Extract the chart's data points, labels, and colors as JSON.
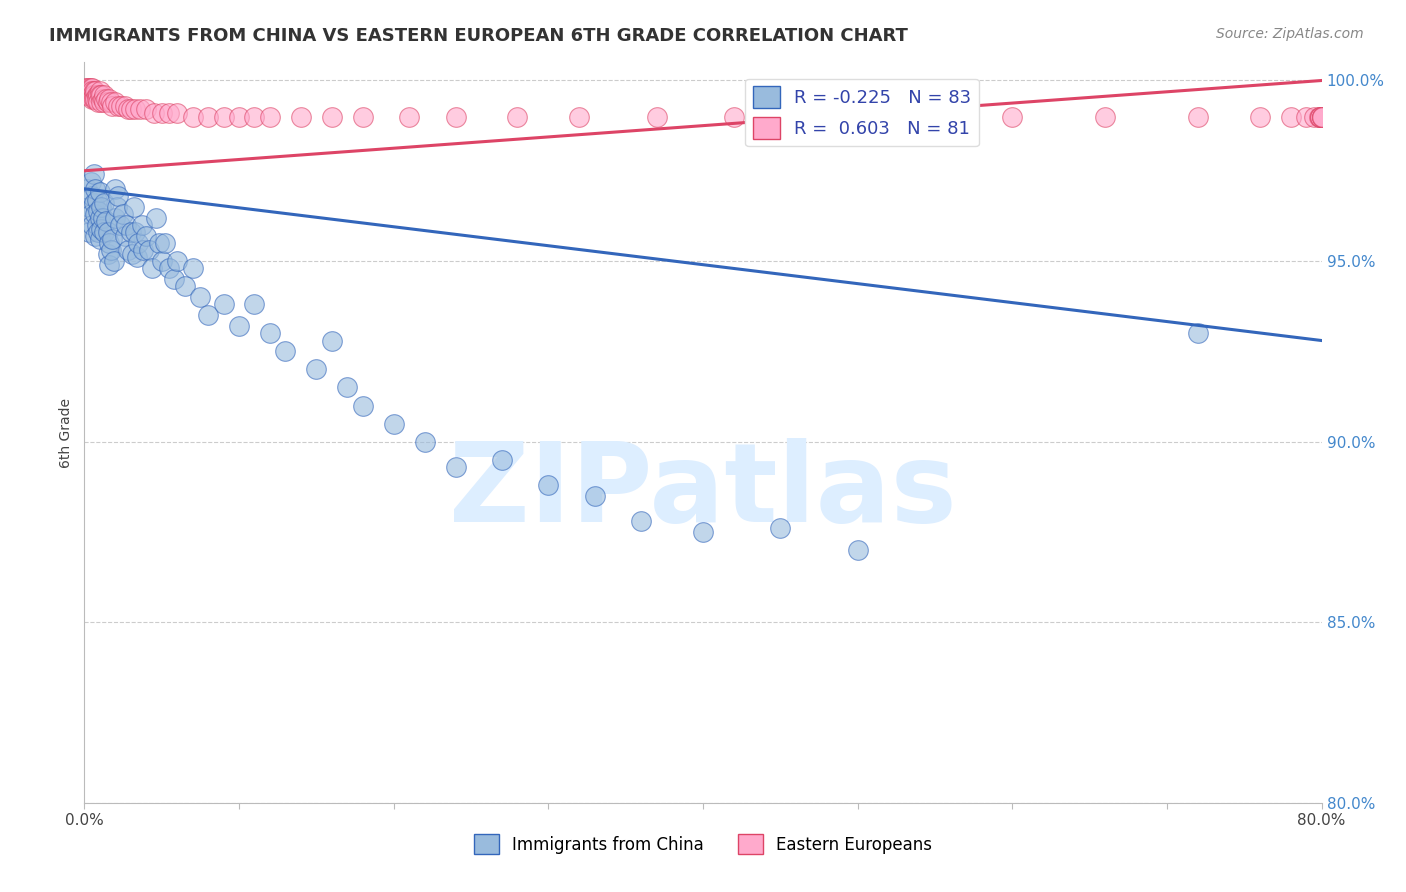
{
  "title": "IMMIGRANTS FROM CHINA VS EASTERN EUROPEAN 6TH GRADE CORRELATION CHART",
  "source": "Source: ZipAtlas.com",
  "ylabel": "6th Grade",
  "xmin": 0.0,
  "xmax": 0.8,
  "ymin": 0.8,
  "ymax": 1.005,
  "yticks": [
    0.8,
    0.85,
    0.9,
    0.95,
    1.0
  ],
  "ytick_labels": [
    "80.0%",
    "85.0%",
    "90.0%",
    "95.0%",
    "100.0%"
  ],
  "xticks": [
    0.0,
    0.1,
    0.2,
    0.3,
    0.4,
    0.5,
    0.6,
    0.7,
    0.8
  ],
  "xtick_labels": [
    "0.0%",
    "",
    "",
    "",
    "",
    "",
    "",
    "",
    "80.0%"
  ],
  "blue_color": "#99BBDD",
  "pink_color": "#FFAACC",
  "blue_line_color": "#3366BB",
  "pink_line_color": "#DD4466",
  "blue_scatter_x": [
    0.002,
    0.003,
    0.003,
    0.004,
    0.004,
    0.005,
    0.005,
    0.006,
    0.006,
    0.007,
    0.007,
    0.007,
    0.008,
    0.008,
    0.009,
    0.009,
    0.01,
    0.01,
    0.01,
    0.011,
    0.011,
    0.012,
    0.013,
    0.013,
    0.014,
    0.015,
    0.015,
    0.016,
    0.016,
    0.017,
    0.018,
    0.019,
    0.02,
    0.02,
    0.021,
    0.022,
    0.023,
    0.025,
    0.026,
    0.027,
    0.028,
    0.03,
    0.031,
    0.032,
    0.033,
    0.034,
    0.035,
    0.037,
    0.038,
    0.04,
    0.042,
    0.044,
    0.046,
    0.048,
    0.05,
    0.052,
    0.055,
    0.058,
    0.06,
    0.065,
    0.07,
    0.075,
    0.08,
    0.09,
    0.1,
    0.11,
    0.12,
    0.13,
    0.15,
    0.16,
    0.17,
    0.18,
    0.2,
    0.22,
    0.24,
    0.27,
    0.3,
    0.33,
    0.36,
    0.4,
    0.45,
    0.5,
    0.72
  ],
  "blue_scatter_y": [
    0.97,
    0.965,
    0.958,
    0.972,
    0.963,
    0.968,
    0.96,
    0.974,
    0.966,
    0.97,
    0.963,
    0.957,
    0.967,
    0.96,
    0.964,
    0.958,
    0.969,
    0.962,
    0.956,
    0.965,
    0.959,
    0.962,
    0.966,
    0.958,
    0.961,
    0.958,
    0.952,
    0.955,
    0.949,
    0.953,
    0.956,
    0.95,
    0.97,
    0.962,
    0.965,
    0.968,
    0.96,
    0.963,
    0.957,
    0.96,
    0.953,
    0.958,
    0.952,
    0.965,
    0.958,
    0.951,
    0.955,
    0.96,
    0.953,
    0.957,
    0.953,
    0.948,
    0.962,
    0.955,
    0.95,
    0.955,
    0.948,
    0.945,
    0.95,
    0.943,
    0.948,
    0.94,
    0.935,
    0.938,
    0.932,
    0.938,
    0.93,
    0.925,
    0.92,
    0.928,
    0.915,
    0.91,
    0.905,
    0.9,
    0.893,
    0.895,
    0.888,
    0.885,
    0.878,
    0.875,
    0.876,
    0.87,
    0.93
  ],
  "pink_scatter_x": [
    0.001,
    0.001,
    0.002,
    0.002,
    0.002,
    0.003,
    0.003,
    0.003,
    0.004,
    0.004,
    0.004,
    0.005,
    0.005,
    0.005,
    0.005,
    0.006,
    0.006,
    0.006,
    0.007,
    0.007,
    0.008,
    0.008,
    0.009,
    0.009,
    0.01,
    0.01,
    0.011,
    0.011,
    0.012,
    0.013,
    0.013,
    0.014,
    0.015,
    0.016,
    0.017,
    0.018,
    0.02,
    0.022,
    0.024,
    0.026,
    0.028,
    0.03,
    0.033,
    0.036,
    0.04,
    0.045,
    0.05,
    0.055,
    0.06,
    0.07,
    0.08,
    0.09,
    0.1,
    0.11,
    0.12,
    0.14,
    0.16,
    0.18,
    0.21,
    0.24,
    0.28,
    0.32,
    0.37,
    0.42,
    0.48,
    0.54,
    0.6,
    0.66,
    0.72,
    0.76,
    0.78,
    0.79,
    0.795,
    0.798,
    0.799,
    0.799,
    0.799,
    0.8,
    0.8,
    0.8,
    0.8
  ],
  "pink_scatter_y": [
    0.998,
    0.996,
    0.998,
    0.997,
    0.996,
    0.998,
    0.997,
    0.996,
    0.998,
    0.997,
    0.996,
    0.998,
    0.997,
    0.996,
    0.995,
    0.997,
    0.996,
    0.995,
    0.997,
    0.995,
    0.996,
    0.995,
    0.996,
    0.994,
    0.997,
    0.996,
    0.996,
    0.994,
    0.995,
    0.996,
    0.994,
    0.995,
    0.994,
    0.995,
    0.994,
    0.993,
    0.994,
    0.993,
    0.993,
    0.993,
    0.992,
    0.992,
    0.992,
    0.992,
    0.992,
    0.991,
    0.991,
    0.991,
    0.991,
    0.99,
    0.99,
    0.99,
    0.99,
    0.99,
    0.99,
    0.99,
    0.99,
    0.99,
    0.99,
    0.99,
    0.99,
    0.99,
    0.99,
    0.99,
    0.99,
    0.99,
    0.99,
    0.99,
    0.99,
    0.99,
    0.99,
    0.99,
    0.99,
    0.99,
    0.99,
    0.99,
    0.99,
    0.99,
    0.99,
    0.99,
    0.99
  ],
  "blue_trend_x0": 0.0,
  "blue_trend_y0": 0.97,
  "blue_trend_x1": 0.8,
  "blue_trend_y1": 0.928,
  "pink_trend_x0": 0.0,
  "pink_trend_y0": 0.975,
  "pink_trend_x1": 0.8,
  "pink_trend_y1": 1.0,
  "watermark": "ZIPatlas",
  "watermark_color": "#DDEEFF",
  "background_color": "#FFFFFF",
  "grid_color": "#CCCCCC"
}
